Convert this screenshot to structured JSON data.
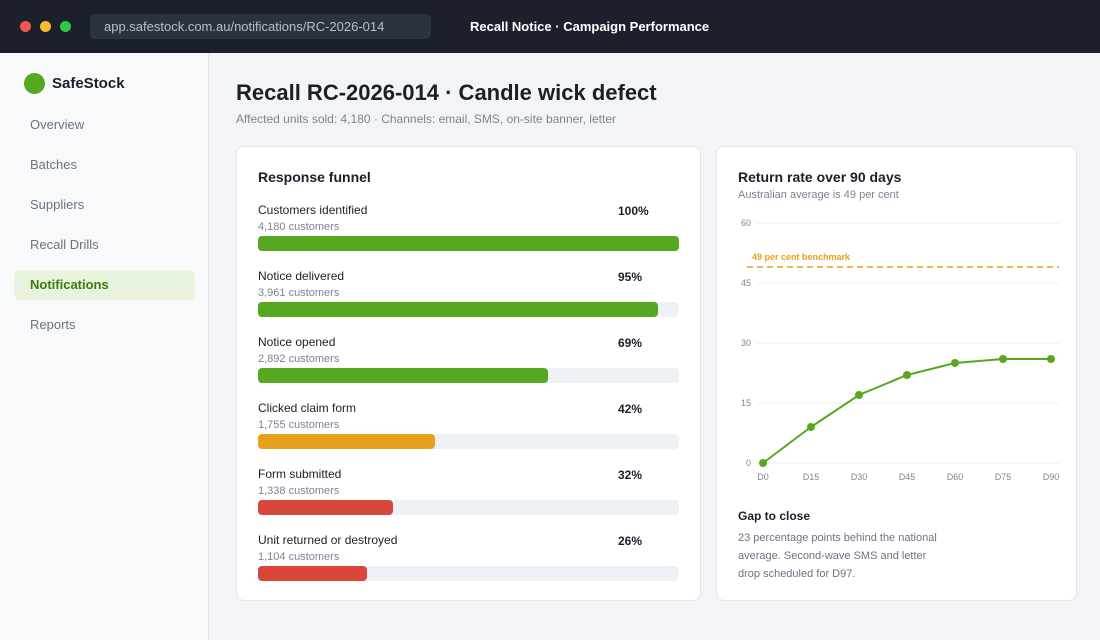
{
  "window": {
    "url": "app.safestock.com.au/notifications/RC-2026-014",
    "title": "Recall Notice  ·  Campaign Performance"
  },
  "sidebar": {
    "brand": "SafeStock",
    "items": [
      {
        "label": "Overview",
        "active": false
      },
      {
        "label": "Batches",
        "active": false
      },
      {
        "label": "Suppliers",
        "active": false
      },
      {
        "label": "Recall Drills",
        "active": false
      },
      {
        "label": "Notifications",
        "active": true
      },
      {
        "label": "Reports",
        "active": false
      }
    ]
  },
  "header": {
    "title": "Recall RC-2026-014  ·  Candle wick defect",
    "subtitle": "Affected units sold: 4,180  ·  Channels: email, SMS, on-site banner, letter"
  },
  "colors": {
    "brand": "#55a820",
    "good": "#55a820",
    "warn": "#e8a01c",
    "bad": "#d9463a",
    "benchmark": "#e8a01c"
  },
  "funnel": {
    "title": "Response funnel",
    "steps": [
      {
        "label": "Customers identified",
        "count": "4,180 customers",
        "pct": "100%",
        "value": 100,
        "status": "good"
      },
      {
        "label": "Notice delivered",
        "count": "3,961 customers",
        "pct": "95%",
        "value": 95,
        "status": "good"
      },
      {
        "label": "Notice opened",
        "count": "2,892 customers",
        "pct": "69%",
        "value": 69,
        "status": "good"
      },
      {
        "label": "Clicked claim form",
        "count": "1,755 customers",
        "pct": "42%",
        "value": 42,
        "status": "warn"
      },
      {
        "label": "Form submitted",
        "count": "1,338 customers",
        "pct": "32%",
        "value": 32,
        "status": "bad"
      },
      {
        "label": "Unit returned or destroyed",
        "count": "1,104 customers",
        "pct": "26%",
        "value": 26,
        "status": "bad"
      }
    ]
  },
  "chart_data": {
    "type": "line",
    "title": "Return rate over 90 days",
    "subtitle": "Australian average is 49 per cent",
    "categories": [
      "D0",
      "D15",
      "D30",
      "D45",
      "D60",
      "D75",
      "D90"
    ],
    "series": [
      {
        "values": [
          0,
          9,
          17,
          22,
          25,
          26,
          26
        ]
      }
    ],
    "ylim": [
      0,
      60
    ],
    "yticks": [
      "0",
      "15",
      "30",
      "45",
      "60"
    ],
    "benchmark": {
      "value": 49,
      "label": "49 per cent benchmark"
    },
    "grid": true
  },
  "gap": {
    "title": "Gap to close",
    "text": "23 percentage points behind the national average. Second-wave SMS and letter drop scheduled for D97."
  }
}
